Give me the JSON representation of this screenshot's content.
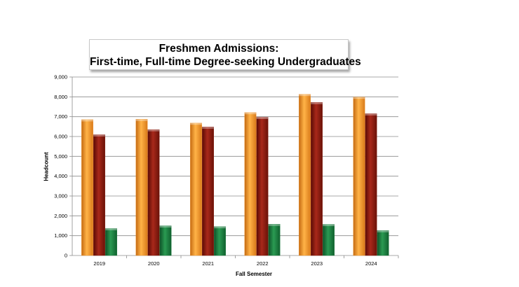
{
  "chart_data": {
    "type": "bar",
    "title": "Freshmen Admissions:",
    "subtitle": "First-time, Full-time Degree-seeking Undergraduates",
    "xlabel": "Fall Semester",
    "ylabel": "Headcount",
    "categories": [
      "2019",
      "2020",
      "2021",
      "2022",
      "2023",
      "2024"
    ],
    "series": [
      {
        "values": [
          6850,
          6870,
          6680,
          7210,
          8130,
          7990
        ],
        "color": "#f0962d"
      },
      {
        "values": [
          6090,
          6350,
          6480,
          6970,
          7720,
          7150
        ],
        "color": "#8a1a0c"
      },
      {
        "values": [
          1360,
          1500,
          1460,
          1580,
          1570,
          1260
        ],
        "color": "#1a7a3c"
      }
    ],
    "ylim": [
      0,
      9000
    ],
    "yticks": [
      "0",
      "1,000",
      "2,000",
      "3,000",
      "4,000",
      "5,000",
      "6,000",
      "7,000",
      "8,000",
      "9,000"
    ],
    "grid": true,
    "legend": "none"
  }
}
